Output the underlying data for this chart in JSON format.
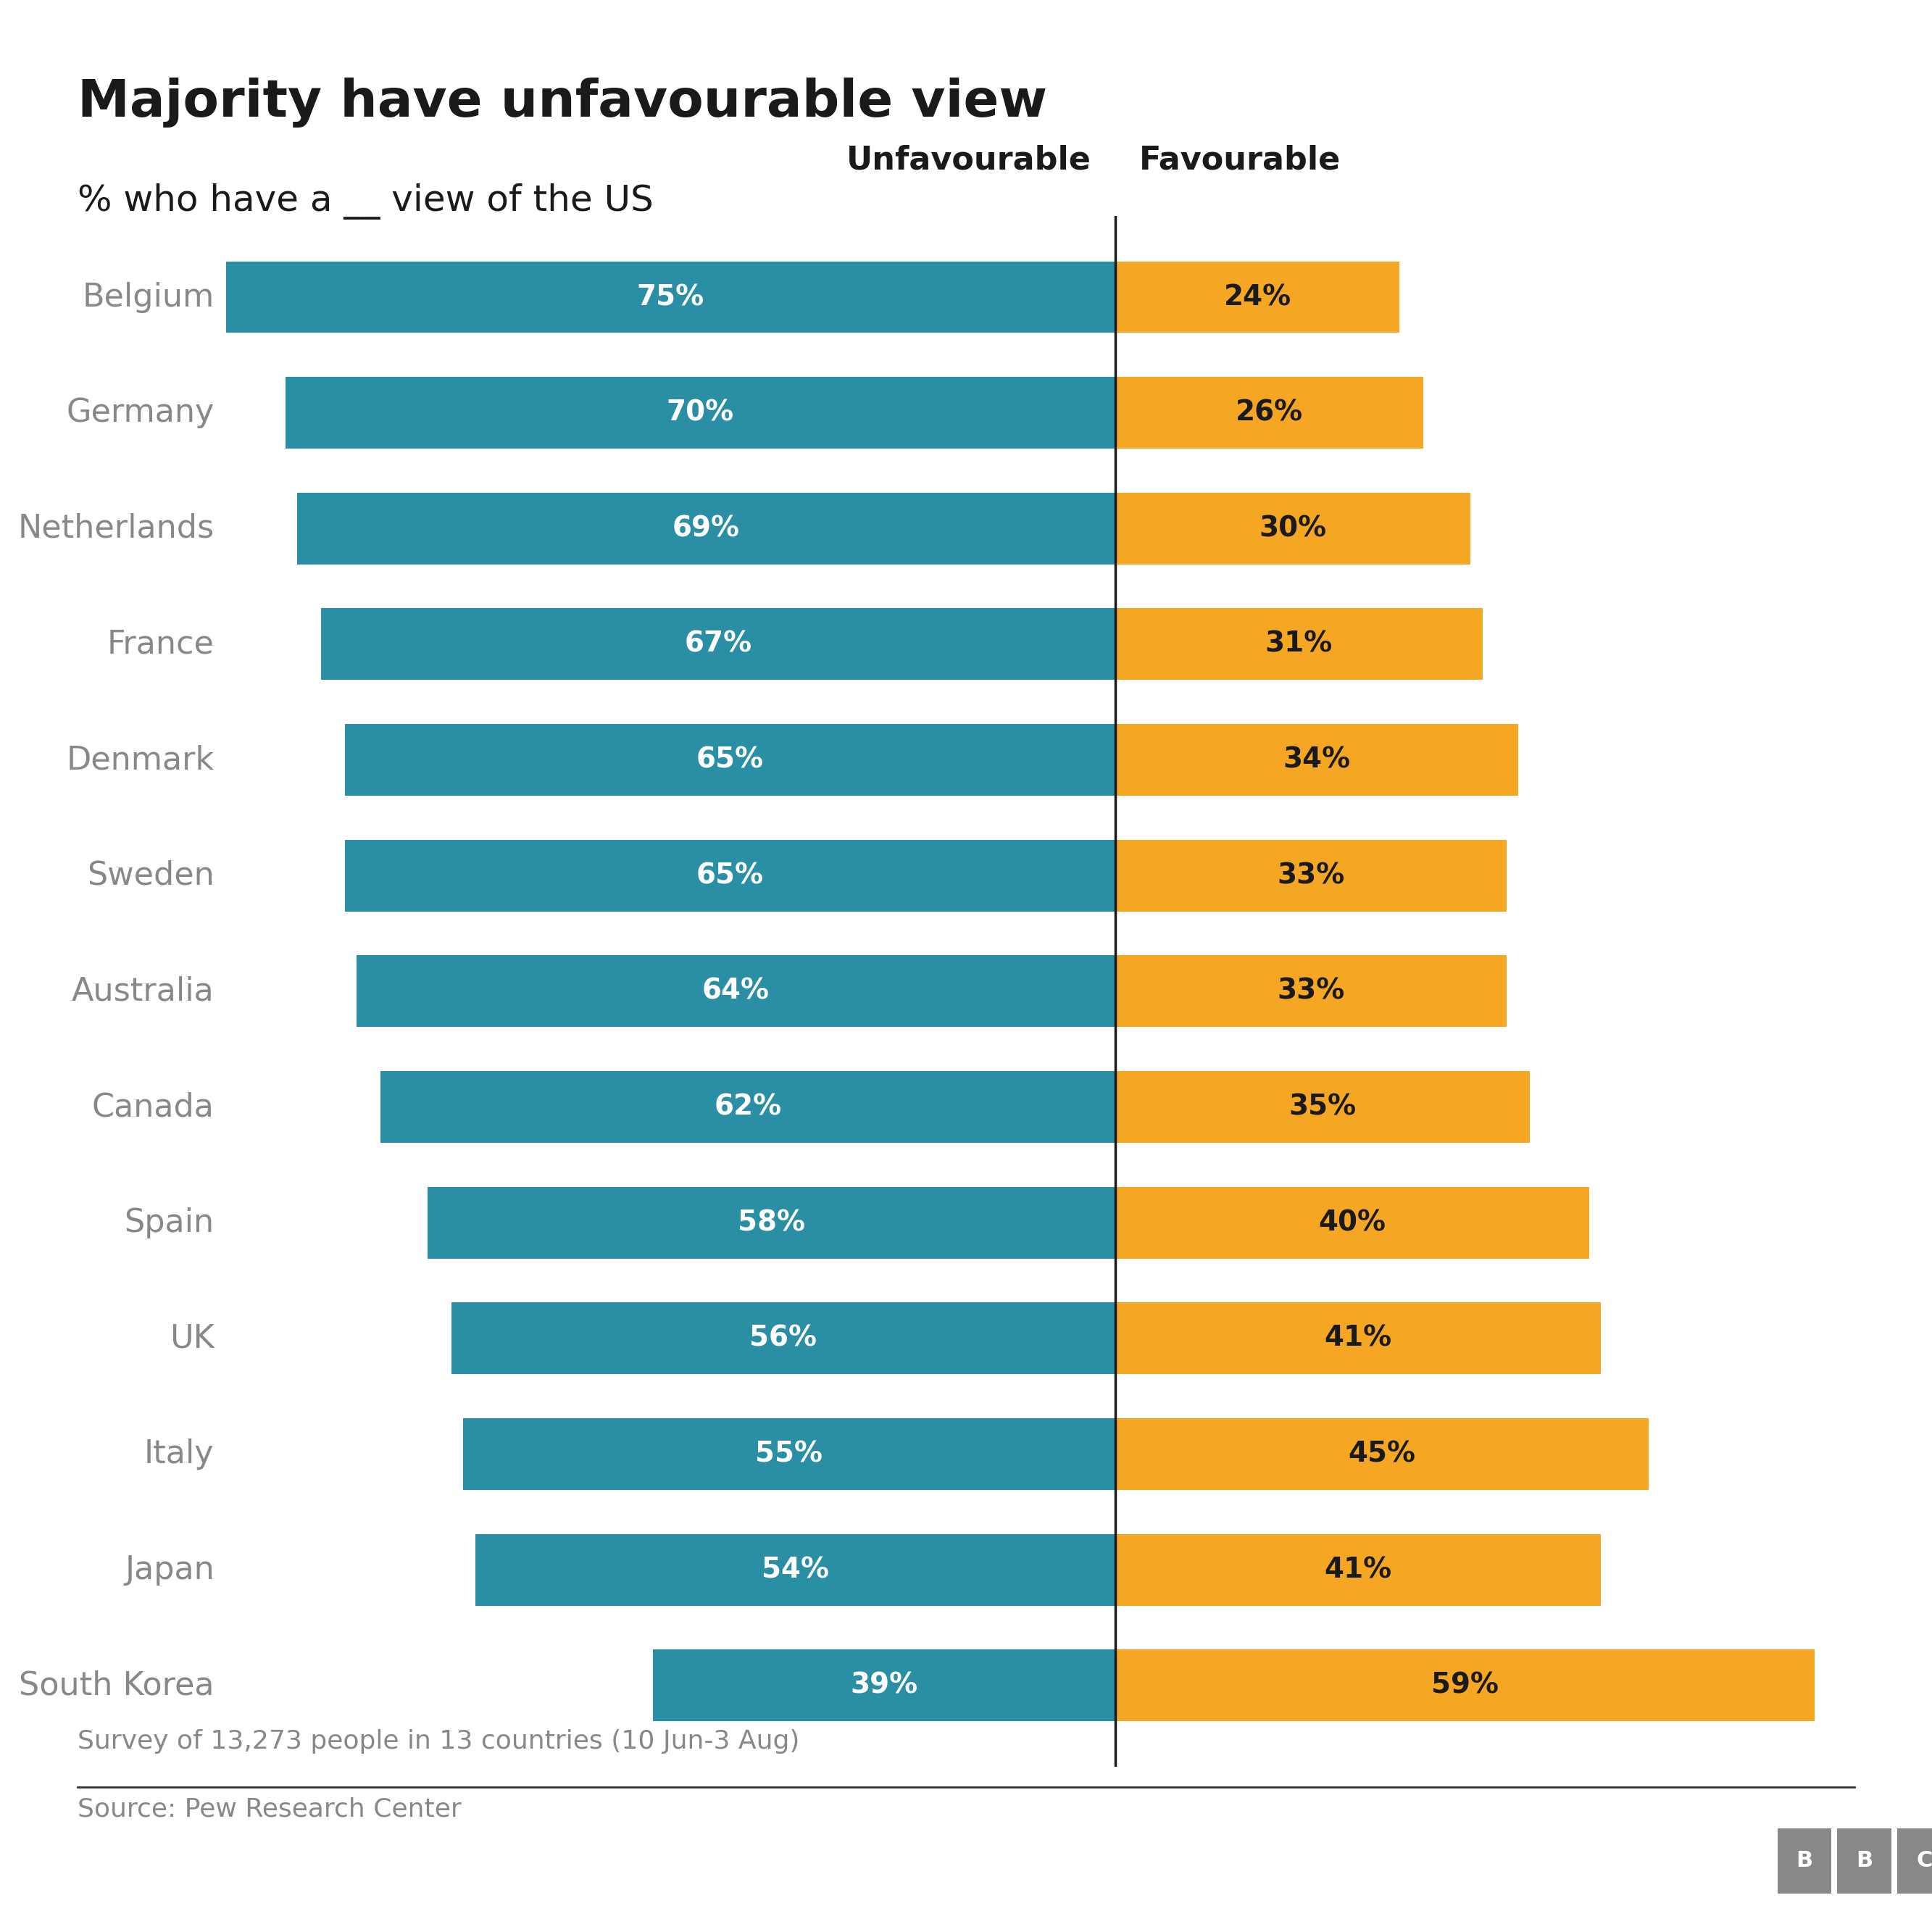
{
  "title": "Majority have unfavourable view",
  "subtitle": "% who have a __ view of the US",
  "countries": [
    "Belgium",
    "Germany",
    "Netherlands",
    "France",
    "Denmark",
    "Sweden",
    "Australia",
    "Canada",
    "Spain",
    "UK",
    "Italy",
    "Japan",
    "South Korea"
  ],
  "unfavourable": [
    75,
    70,
    69,
    67,
    65,
    65,
    64,
    62,
    58,
    56,
    55,
    54,
    39
  ],
  "favourable": [
    24,
    26,
    30,
    31,
    34,
    33,
    33,
    35,
    40,
    41,
    45,
    41,
    59
  ],
  "unfavourable_color": "#2a8fa4",
  "favourable_color": "#f5a623",
  "label_color_unfav": "#ffffff",
  "label_color_fav": "#1a1a1a",
  "divider_color": "#1a1a1a",
  "background_color": "#ffffff",
  "ylabel_color": "#888888",
  "title_color": "#1a1a1a",
  "subtitle_color": "#1a1a1a",
  "header_unfav": "Unfavourable",
  "header_fav": "Favourable",
  "footnote": "Survey of 13,273 people in 13 countries (10 Jun-3 Aug)",
  "source": "Source: Pew Research Center",
  "title_fontsize": 52,
  "subtitle_fontsize": 36,
  "bar_label_fontsize": 28,
  "country_label_fontsize": 32,
  "header_fontsize": 32,
  "footnote_fontsize": 26,
  "source_fontsize": 26,
  "max_unfav": 75,
  "max_fav": 59
}
